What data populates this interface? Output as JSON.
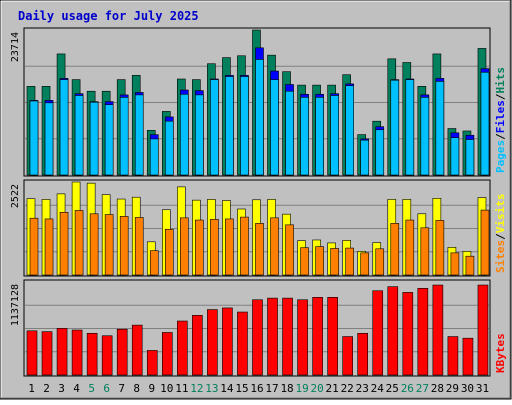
{
  "colors": {
    "background": "#c0c0c0",
    "plot": "#c0c0c0",
    "grid": "#808080",
    "title": "#0000cc",
    "hits": "#00805c",
    "files": "#0000ff",
    "pages": "#00c0ff",
    "visits": "#ffff00",
    "sites": "#ff8000",
    "kbytes": "#ff0000",
    "weekday_label": "#000000",
    "weekend_label": "#00805c"
  },
  "chart_data": {
    "type": "bar",
    "title": "Daily usage for July 2025",
    "categories": [
      "1",
      "2",
      "3",
      "4",
      "5",
      "6",
      "7",
      "8",
      "9",
      "10",
      "11",
      "12",
      "13",
      "14",
      "15",
      "16",
      "17",
      "18",
      "19",
      "20",
      "21",
      "22",
      "23",
      "24",
      "25",
      "26",
      "27",
      "28",
      "29",
      "30",
      "31"
    ],
    "weekend_days": [
      "5",
      "6",
      "12",
      "13",
      "19",
      "20",
      "26",
      "27"
    ],
    "panels": [
      {
        "id": "usage",
        "ymax_label": "23714",
        "ymax": 23714,
        "legend": [
          {
            "name": "Pages",
            "color_key": "pages"
          },
          {
            "name": "Files",
            "color_key": "files"
          },
          {
            "name": "Hits",
            "color_key": "hits"
          }
        ],
        "separator": "/",
        "series": [
          {
            "name": "Hits",
            "color_key": "hits",
            "values": [
              14500,
              14500,
              19800,
              15600,
              13700,
              13700,
              15600,
              16300,
              7300,
              10400,
              15700,
              15600,
              18200,
              19200,
              19500,
              23714,
              19600,
              16900,
              14700,
              14700,
              14700,
              16400,
              6600,
              8800,
              19000,
              18400,
              14500,
              19800,
              7600,
              7200,
              20700
            ]
          },
          {
            "name": "Files",
            "color_key": "files",
            "values": [
              12200,
              12200,
              15800,
              13300,
              12000,
              12000,
              13100,
              13500,
              6600,
              9500,
              13900,
              13800,
              15700,
              16300,
              16300,
              20800,
              17000,
              14800,
              13200,
              13200,
              13300,
              14900,
              5900,
              7900,
              15600,
              15700,
              13100,
              15800,
              6900,
              6500,
              17400
            ]
          },
          {
            "name": "Pages",
            "color_key": "pages",
            "values": [
              12100,
              11800,
              15600,
              13000,
              11900,
              11500,
              12700,
              13100,
              5900,
              8800,
              13200,
              13100,
              15600,
              16100,
              16100,
              18900,
              15600,
              13700,
              12700,
              12700,
              13000,
              14600,
              5700,
              7400,
              15500,
              15600,
              12700,
              15300,
              6100,
              5800,
              16800
            ]
          }
        ]
      },
      {
        "id": "visits",
        "ymax_label": "2522",
        "ymax": 2522,
        "legend": [
          {
            "name": "Sites",
            "color_key": "sites"
          },
          {
            "name": "Visits",
            "color_key": "visits"
          }
        ],
        "separator": "/",
        "series": [
          {
            "name": "Visits",
            "color_key": "visits",
            "values": [
              2070,
              2050,
              2200,
              2522,
              2490,
              2180,
              2060,
              2110,
              900,
              1770,
              2390,
              2030,
              2050,
              2020,
              1790,
              2040,
              2050,
              1650,
              930,
              950,
              870,
              940,
              640,
              880,
              2050,
              2050,
              1660,
              2080,
              750,
              640,
              2100
            ]
          },
          {
            "name": "Sites",
            "color_key": "sites",
            "values": [
              1540,
              1520,
              1700,
              1750,
              1660,
              1640,
              1590,
              1560,
              660,
              1240,
              1550,
              1490,
              1510,
              1520,
              1570,
              1400,
              1550,
              1360,
              740,
              770,
              720,
              730,
              600,
              710,
              1400,
              1490,
              1280,
              1480,
              600,
              510,
              1760
            ]
          }
        ]
      },
      {
        "id": "kbytes",
        "ymax_label": "1137128",
        "ymax": 1137128,
        "legend": [
          {
            "name": "KBytes",
            "color_key": "kbytes"
          }
        ],
        "series": [
          {
            "name": "KBytes",
            "color_key": "kbytes",
            "values": [
              540000,
              530000,
              570000,
              550000,
              510000,
              480000,
              560000,
              610000,
              300000,
              520000,
              660000,
              730000,
              800000,
              820000,
              770000,
              920000,
              940000,
              940000,
              920000,
              950000,
              950000,
              470000,
              510000,
              1030000,
              1080000,
              1010000,
              1060000,
              1100000,
              470000,
              450000,
              1100000
            ]
          }
        ]
      }
    ]
  }
}
